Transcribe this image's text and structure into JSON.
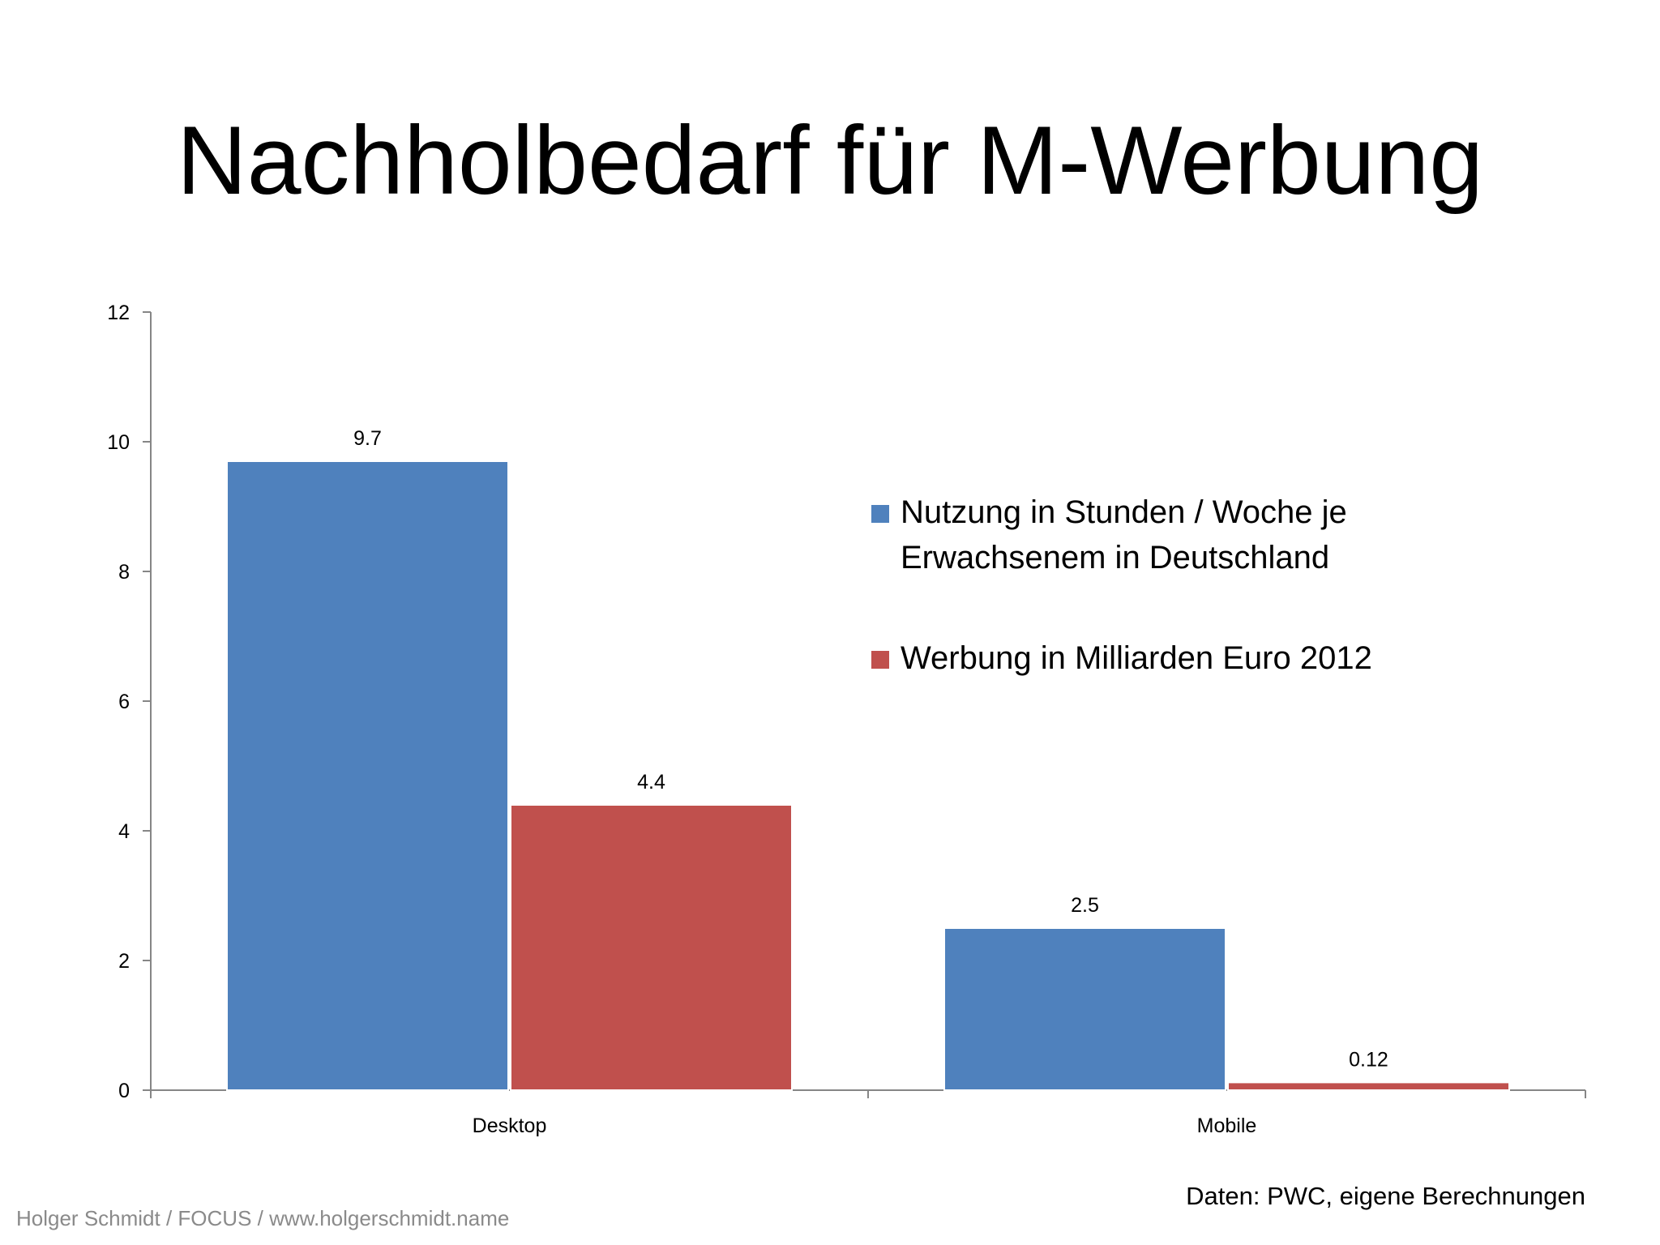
{
  "title": "Nachholbedarf für M-Werbung",
  "source_note": "Daten: PWC, eigene Berechnungen",
  "author_credit": "Holger Schmidt / FOCUS / www.holgerschmidt.name",
  "chart_data": {
    "type": "bar",
    "categories": [
      "Desktop",
      "Mobile"
    ],
    "series": [
      {
        "name": "Nutzung in Stunden / Woche je Erwachsenem in Deutschland",
        "values": [
          9.7,
          2.5
        ],
        "labels": [
          "9.7",
          "2.5"
        ],
        "color": "#4f81bd"
      },
      {
        "name": "Werbung in Milliarden Euro 2012",
        "values": [
          4.4,
          0.12
        ],
        "labels": [
          "4.4",
          "0.12"
        ],
        "color": "#c0504d"
      }
    ],
    "yticks": [
      "0",
      "2",
      "4",
      "6",
      "8",
      "10",
      "12"
    ],
    "ylim": [
      0,
      12
    ],
    "xlabel": "",
    "ylabel": "",
    "grid": false,
    "legend_position": "right"
  }
}
